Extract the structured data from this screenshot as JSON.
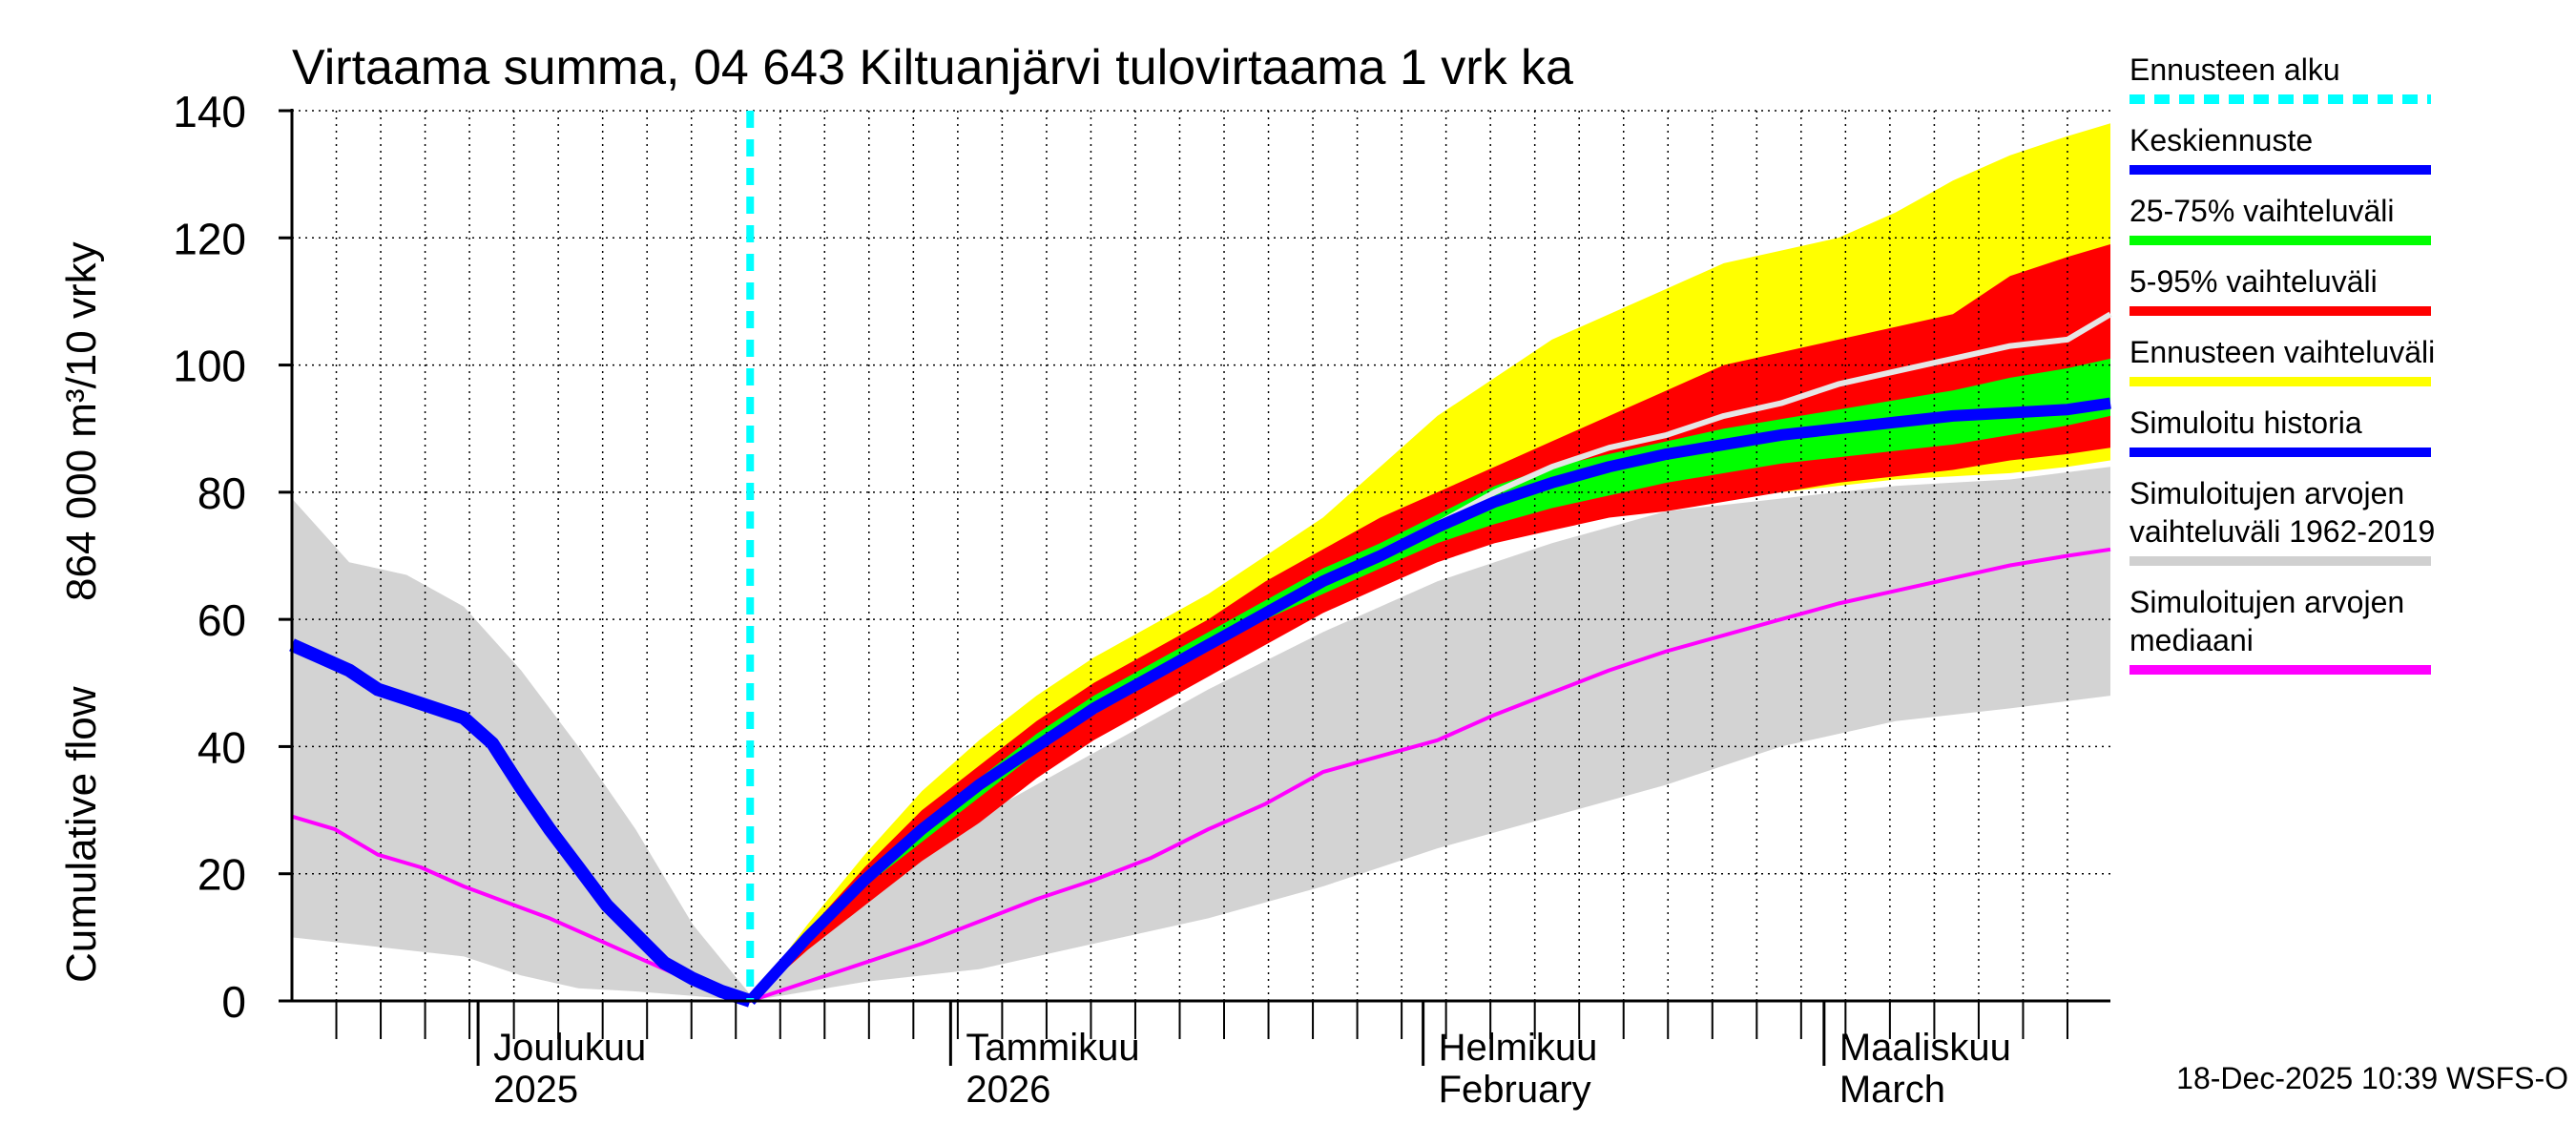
{
  "chart_data": {
    "type": "area",
    "title": "Virtaama summa, 04 643 Kiltuanjärvi tulovirtaama 1 vrk ka",
    "ylabel_top": "864 000 m³/10 vrky",
    "ylabel_bottom": "Cumulative flow",
    "ylim": [
      0,
      140
    ],
    "yticks": [
      0,
      20,
      40,
      60,
      80,
      100,
      120,
      140
    ],
    "xlim_days": [
      0,
      127
    ],
    "forecast_start_day": 32,
    "months": [
      {
        "day": 13,
        "name": "Joulukuu",
        "sub": "2025"
      },
      {
        "day": 46,
        "name": "Tammikuu",
        "sub": "2026"
      },
      {
        "day": 79,
        "name": "Helmikuu",
        "sub": "February"
      },
      {
        "day": 107,
        "name": "Maaliskuu",
        "sub": "March"
      }
    ],
    "legend": [
      {
        "label": "Ennusteen alku",
        "color": "#00ffff",
        "style": "dashed"
      },
      {
        "label": "Keskiennuste",
        "color": "#0000ff",
        "style": "solid"
      },
      {
        "label": "25-75% vaihteluväli",
        "color": "#00ff00",
        "style": "solid"
      },
      {
        "label": "5-95% vaihteluväli",
        "color": "#ff0000",
        "style": "solid"
      },
      {
        "label": "Ennusteen vaihteluväli",
        "color": "#ffff00",
        "style": "solid"
      },
      {
        "label": "Simuloitu historia",
        "color": "#0000ff",
        "style": "solid"
      },
      {
        "label": "Simuloitujen arvojen vaihteluväli 1962-2019",
        "lines": [
          "Simuloitujen arvojen",
          "vaihteluväli 1962-2019"
        ],
        "color": "#d0d0d0",
        "style": "solid"
      },
      {
        "label": "Simuloitujen arvojen mediaani",
        "lines": [
          "Simuloitujen arvojen",
          "mediaani"
        ],
        "color": "#ff00ff",
        "style": "solid"
      }
    ],
    "series": {
      "history_range": {
        "x": [
          0,
          4,
          8,
          12,
          16,
          20,
          24,
          28,
          32,
          36,
          40,
          48,
          56,
          64,
          72,
          80,
          88,
          96,
          104,
          112,
          120,
          127
        ],
        "upper": [
          79,
          69,
          67,
          62,
          52,
          40,
          27,
          12,
          1,
          10,
          17,
          29,
          39,
          49,
          58,
          66,
          72,
          77,
          79,
          81,
          82,
          84
        ],
        "lower": [
          10,
          9,
          8,
          7,
          4,
          2,
          1.5,
          0.8,
          0,
          1.5,
          3,
          5,
          9,
          13,
          18,
          24,
          29,
          34,
          40,
          44,
          46,
          48
        ]
      },
      "history_median": {
        "x": [
          0,
          3,
          6,
          9,
          12,
          15,
          18,
          21,
          24,
          27,
          30,
          32,
          36,
          40,
          44,
          48,
          52,
          56,
          60,
          64,
          68,
          72,
          76,
          80,
          84,
          88,
          92,
          96,
          100,
          104,
          108,
          112,
          116,
          120,
          124,
          127
        ],
        "values": [
          29,
          27,
          23,
          21,
          18,
          15.5,
          13,
          10,
          7,
          4,
          1.5,
          0,
          3,
          6,
          9,
          12.5,
          16,
          19,
          22.5,
          27,
          31,
          36,
          38.5,
          41,
          45,
          48.5,
          52,
          55,
          57.5,
          60,
          62.5,
          64.5,
          66.5,
          68.5,
          70,
          71
        ]
      },
      "simulated_history": {
        "x": [
          0,
          2,
          4,
          6,
          8,
          10,
          12,
          14,
          15,
          16,
          18,
          20,
          22,
          24,
          26,
          28,
          30,
          32
        ],
        "values": [
          56,
          54,
          52,
          49,
          47.5,
          46,
          44.5,
          40.5,
          37,
          33.5,
          27,
          21,
          15,
          10.5,
          6,
          3.5,
          1.5,
          0
        ]
      },
      "forecast_full": {
        "x": [
          32,
          36,
          40,
          44,
          48,
          52,
          56,
          60,
          64,
          68,
          72,
          76,
          80,
          84,
          88,
          92,
          96,
          100,
          104,
          108,
          112,
          116,
          120,
          124,
          127
        ],
        "upper": [
          0,
          12,
          23,
          33,
          41,
          48,
          54,
          59,
          64,
          70,
          76,
          84,
          92,
          98,
          104,
          108,
          112,
          116,
          118,
          120,
          124,
          129,
          133,
          136,
          138
        ],
        "lower": [
          0,
          9,
          16,
          23,
          29,
          36,
          42,
          47,
          52,
          57,
          62,
          66,
          70,
          73,
          75,
          76.5,
          77.5,
          79,
          80,
          81,
          82,
          82.5,
          83,
          84,
          85
        ]
      },
      "forecast_5_95": {
        "x": [
          32,
          36,
          40,
          44,
          48,
          52,
          56,
          60,
          64,
          68,
          72,
          76,
          80,
          84,
          88,
          92,
          96,
          100,
          104,
          108,
          112,
          116,
          120,
          124,
          127
        ],
        "upper": [
          0,
          11,
          21,
          30,
          37,
          44,
          50,
          55,
          60,
          66,
          71,
          76,
          80,
          84,
          88,
          92,
          96,
          100,
          102,
          104,
          106,
          108,
          114,
          117,
          119
        ],
        "lower": [
          0,
          8,
          15,
          22,
          28,
          35,
          41,
          46,
          51,
          56,
          61,
          65,
          69,
          72,
          74,
          76,
          77,
          78.5,
          80,
          81.5,
          82.5,
          83.5,
          85,
          86,
          87
        ]
      },
      "forecast_25_75": {
        "x": [
          32,
          36,
          40,
          44,
          48,
          52,
          56,
          60,
          64,
          68,
          72,
          76,
          80,
          84,
          88,
          92,
          96,
          100,
          104,
          108,
          112,
          116,
          120,
          124,
          127
        ],
        "upper": [
          0,
          10.5,
          19.5,
          28,
          35,
          42,
          48,
          53,
          58,
          63,
          68,
          72,
          76.5,
          81,
          84,
          86,
          88,
          90,
          91.5,
          93,
          94.5,
          96,
          98,
          99.5,
          101
        ],
        "lower": [
          0,
          9.5,
          18,
          25,
          32,
          39,
          45,
          50,
          55,
          60,
          64,
          68,
          72,
          75,
          77.5,
          79.5,
          81.5,
          83,
          84.5,
          85.5,
          86.5,
          87.5,
          89,
          90.5,
          92
        ]
      },
      "forecast_mean": {
        "x": [
          32,
          36,
          40,
          44,
          48,
          52,
          56,
          60,
          64,
          68,
          72,
          76,
          80,
          84,
          88,
          92,
          96,
          100,
          104,
          108,
          112,
          116,
          120,
          124,
          127
        ],
        "values": [
          0,
          10,
          19,
          27,
          34,
          40,
          46,
          51,
          56,
          61,
          66,
          70,
          74.5,
          78.5,
          81.5,
          84,
          86,
          87.5,
          89,
          90,
          91,
          92,
          92.5,
          93,
          94
        ]
      },
      "forecast_trace": {
        "x": [
          32,
          36,
          40,
          44,
          48,
          52,
          56,
          60,
          64,
          68,
          72,
          76,
          80,
          84,
          88,
          92,
          96,
          100,
          104,
          108,
          112,
          116,
          120,
          124,
          127
        ],
        "values": [
          0,
          10,
          19,
          27,
          34,
          40,
          45.5,
          51,
          56,
          61,
          66,
          70.5,
          75,
          80,
          84,
          87,
          89,
          92,
          94,
          97,
          99,
          101,
          103,
          104,
          108
        ]
      }
    }
  },
  "footer": "18-Dec-2025 10:39 WSFS-O"
}
